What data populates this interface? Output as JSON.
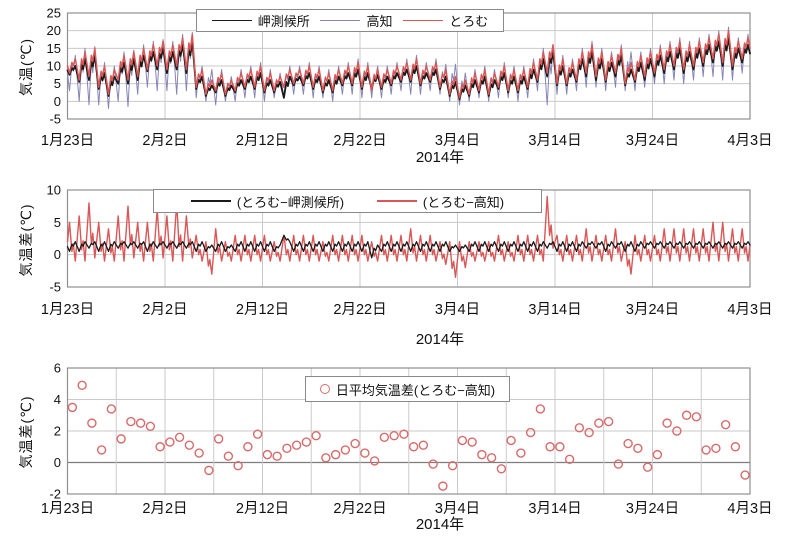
{
  "figure": {
    "year_label": "2014年",
    "x_axis_dates": [
      "1月23日",
      "2月2日",
      "2月12日",
      "2月22日",
      "3月4日",
      "3月14日",
      "3月24日",
      "4月3日"
    ]
  },
  "chart_data": [
    {
      "type": "line",
      "title": "",
      "ylabel": "気温(℃)",
      "xlabel": "2014年",
      "ylim": [
        -5,
        25
      ],
      "yticks": [
        25,
        20,
        15,
        10,
        5,
        0,
        -5
      ],
      "xlim_days": [
        0,
        70
      ],
      "grid_day_step": 10,
      "legend_position": "top-center",
      "xticks": [
        {
          "day": 0,
          "label": "1月23日"
        },
        {
          "day": 10,
          "label": "2月2日"
        },
        {
          "day": 20,
          "label": "2月12日"
        },
        {
          "day": 30,
          "label": "2月22日"
        },
        {
          "day": 40,
          "label": "3月4日"
        },
        {
          "day": 50,
          "label": "3月14日"
        },
        {
          "day": 60,
          "label": "3月24日"
        },
        {
          "day": 70,
          "label": "4月3日"
        }
      ],
      "series": [
        {
          "name": "岬測候所",
          "color": "#1a1a1a",
          "line_width": 1.8,
          "daily_min_max": [
            [
              7.5,
              10
            ],
            [
              5.5,
              12
            ],
            [
              6,
              13
            ],
            [
              3.5,
              8
            ],
            [
              1.5,
              7
            ],
            [
              5,
              11
            ],
            [
              5,
              12
            ],
            [
              6,
              13
            ],
            [
              8.5,
              14
            ],
            [
              9,
              15
            ],
            [
              8,
              14
            ],
            [
              9,
              16
            ],
            [
              8,
              17
            ],
            [
              3.5,
              7
            ],
            [
              1.5,
              4.5
            ],
            [
              2.5,
              6
            ],
            [
              1.5,
              4.5
            ],
            [
              2.5,
              6
            ],
            [
              3.5,
              7
            ],
            [
              3.5,
              8
            ],
            [
              2.5,
              6
            ],
            [
              2.5,
              5.5
            ],
            [
              1,
              7
            ],
            [
              4.5,
              7
            ],
            [
              4.5,
              8
            ],
            [
              3.5,
              7
            ],
            [
              2.5,
              6
            ],
            [
              2.5,
              7
            ],
            [
              4.5,
              8
            ],
            [
              4.5,
              9
            ],
            [
              3.5,
              8
            ],
            [
              3.5,
              7.5
            ],
            [
              3.5,
              7
            ],
            [
              4.5,
              8
            ],
            [
              5.5,
              9
            ],
            [
              5.5,
              10
            ],
            [
              4.5,
              8
            ],
            [
              5.5,
              9
            ],
            [
              3.5,
              7
            ],
            [
              1.5,
              5.5
            ],
            [
              0.5,
              4.5
            ],
            [
              1.5,
              6
            ],
            [
              2.5,
              7
            ],
            [
              1.5,
              6
            ],
            [
              3.5,
              8
            ],
            [
              2.5,
              7
            ],
            [
              2.5,
              7
            ],
            [
              3.5,
              9
            ],
            [
              5.5,
              12
            ],
            [
              7,
              14
            ],
            [
              4.5,
              10
            ],
            [
              4.5,
              9
            ],
            [
              5.5,
              12
            ],
            [
              7,
              14
            ],
            [
              6,
              12
            ],
            [
              5.5,
              11
            ],
            [
              7,
              13
            ],
            [
              4.5,
              9
            ],
            [
              5.5,
              11
            ],
            [
              6,
              12
            ],
            [
              7,
              13
            ],
            [
              8,
              14
            ],
            [
              9,
              15
            ],
            [
              8,
              14
            ],
            [
              9,
              15
            ],
            [
              10,
              16
            ],
            [
              11,
              17
            ],
            [
              10,
              18
            ],
            [
              9,
              15
            ],
            [
              11,
              16
            ]
          ]
        },
        {
          "name": "高知",
          "color": "#8585b8",
          "line_width": 1.0,
          "daily_min_max": [
            [
              3,
              13
            ],
            [
              0,
              15
            ],
            [
              -1,
              15.5
            ],
            [
              -1,
              11
            ],
            [
              -2,
              10
            ],
            [
              0,
              14
            ],
            [
              -1.5,
              14.5
            ],
            [
              2,
              16
            ],
            [
              4,
              17
            ],
            [
              3,
              17.5
            ],
            [
              3,
              17
            ],
            [
              2,
              19
            ],
            [
              3,
              19.5
            ],
            [
              1,
              10
            ],
            [
              0,
              9
            ],
            [
              -1,
              9
            ],
            [
              0,
              7
            ],
            [
              0,
              9
            ],
            [
              1,
              10
            ],
            [
              1,
              11
            ],
            [
              0,
              9
            ],
            [
              1,
              8
            ],
            [
              1,
              10
            ],
            [
              2,
              10
            ],
            [
              2,
              11
            ],
            [
              1,
              10
            ],
            [
              1,
              9
            ],
            [
              0,
              10
            ],
            [
              2,
              11
            ],
            [
              2,
              12
            ],
            [
              1,
              11
            ],
            [
              1,
              10
            ],
            [
              1,
              10
            ],
            [
              2,
              11
            ],
            [
              3,
              12
            ],
            [
              2,
              13
            ],
            [
              2,
              11
            ],
            [
              3,
              12
            ],
            [
              2,
              10.5
            ],
            [
              0,
              10.5
            ],
            [
              -1,
              8
            ],
            [
              0,
              9
            ],
            [
              1,
              10
            ],
            [
              0,
              9
            ],
            [
              1,
              11
            ],
            [
              1,
              10
            ],
            [
              0,
              10
            ],
            [
              1,
              12
            ],
            [
              3,
              15
            ],
            [
              -1,
              15
            ],
            [
              2,
              13
            ],
            [
              2,
              12
            ],
            [
              3,
              15
            ],
            [
              4,
              17
            ],
            [
              4,
              15
            ],
            [
              3,
              14
            ],
            [
              4,
              16
            ],
            [
              3,
              14
            ],
            [
              3,
              14
            ],
            [
              4,
              15
            ],
            [
              5,
              16
            ],
            [
              5,
              17
            ],
            [
              6,
              18
            ],
            [
              5,
              17
            ],
            [
              6,
              18
            ],
            [
              7,
              19
            ],
            [
              7,
              20
            ],
            [
              6,
              21
            ],
            [
              6,
              18
            ],
            [
              8,
              19
            ]
          ]
        },
        {
          "name": "とろむ",
          "color": "#d95757",
          "line_width": 1.5,
          "daily_min_max": [
            [
              8,
              12
            ],
            [
              6,
              14
            ],
            [
              7,
              15
            ],
            [
              4,
              10
            ],
            [
              2,
              9
            ],
            [
              6,
              13
            ],
            [
              6,
              14
            ],
            [
              7,
              15
            ],
            [
              9,
              16
            ],
            [
              10,
              17
            ],
            [
              9,
              16
            ],
            [
              10,
              18
            ],
            [
              9,
              19
            ],
            [
              4,
              9
            ],
            [
              2,
              6
            ],
            [
              3,
              8
            ],
            [
              2,
              6
            ],
            [
              3,
              8
            ],
            [
              4,
              9
            ],
            [
              4,
              10
            ],
            [
              3,
              8
            ],
            [
              3,
              7
            ],
            [
              4,
              9
            ],
            [
              5,
              9
            ],
            [
              5,
              10
            ],
            [
              4,
              9
            ],
            [
              3,
              8
            ],
            [
              3,
              9
            ],
            [
              5,
              10
            ],
            [
              5,
              11
            ],
            [
              4,
              10
            ],
            [
              3,
              9
            ],
            [
              4,
              9
            ],
            [
              5,
              10
            ],
            [
              6,
              11
            ],
            [
              6,
              12
            ],
            [
              5,
              10
            ],
            [
              6,
              11
            ],
            [
              4,
              9
            ],
            [
              2,
              7
            ],
            [
              1,
              6
            ],
            [
              2,
              8
            ],
            [
              3,
              9
            ],
            [
              2,
              8
            ],
            [
              4,
              10
            ],
            [
              3,
              9
            ],
            [
              3,
              9
            ],
            [
              4,
              11
            ],
            [
              6,
              14
            ],
            [
              8,
              16
            ],
            [
              5,
              12
            ],
            [
              5,
              11
            ],
            [
              6,
              14
            ],
            [
              8,
              16
            ],
            [
              7,
              14
            ],
            [
              6,
              13
            ],
            [
              8,
              15
            ],
            [
              5,
              11
            ],
            [
              6,
              13
            ],
            [
              7,
              14
            ],
            [
              8,
              15
            ],
            [
              9,
              16
            ],
            [
              10,
              17
            ],
            [
              9,
              16
            ],
            [
              10,
              17
            ],
            [
              11,
              18
            ],
            [
              12,
              19
            ],
            [
              11,
              20
            ],
            [
              10,
              17
            ],
            [
              12,
              18
            ]
          ]
        }
      ]
    },
    {
      "type": "line",
      "title": "",
      "ylabel": "気温差(℃)",
      "xlabel": "2014年",
      "ylim": [
        -5,
        10
      ],
      "yticks": [
        10,
        5,
        0,
        -5
      ],
      "xlim_days": [
        0,
        70
      ],
      "grid_day_step": 10,
      "legend_position": "top-center",
      "xticks": [
        {
          "day": 0,
          "label": "1月23日"
        },
        {
          "day": 10,
          "label": "2月2日"
        },
        {
          "day": 20,
          "label": "2月12日"
        },
        {
          "day": 30,
          "label": "2月22日"
        },
        {
          "day": 40,
          "label": "3月4日"
        },
        {
          "day": 50,
          "label": "3月14日"
        },
        {
          "day": 60,
          "label": "3月24日"
        },
        {
          "day": 70,
          "label": "4月3日"
        }
      ],
      "series": [
        {
          "name": "(とろむ−岬測候所)",
          "color": "#1a1a1a",
          "line_width": 1.3,
          "derived_difference_of": [
            "とろむ",
            "岬測候所"
          ]
        },
        {
          "name": "(とろむ−高知)",
          "color": "#d95757",
          "line_width": 1.4,
          "derived_difference_of": [
            "とろむ",
            "高知"
          ]
        }
      ]
    },
    {
      "type": "scatter",
      "title": "",
      "ylabel": "気温差(℃)",
      "xlabel": "2014年",
      "ylim": [
        -2,
        6
      ],
      "yticks": [
        6,
        4,
        2,
        0,
        -2
      ],
      "xlim_days": [
        0,
        70
      ],
      "grid_day_step": 5,
      "zero_line_dark": true,
      "legend_position": "top-center",
      "xticks": [
        {
          "day": 0,
          "label": "1月23日"
        },
        {
          "day": 10,
          "label": "2月2日"
        },
        {
          "day": 20,
          "label": "2月12日"
        },
        {
          "day": 30,
          "label": "2月22日"
        },
        {
          "day": 40,
          "label": "3月4日"
        },
        {
          "day": 50,
          "label": "3月14日"
        },
        {
          "day": 60,
          "label": "3月24日"
        },
        {
          "day": 70,
          "label": "4月3日"
        }
      ],
      "series": [
        {
          "name": "日平均気温差(とろむ−高知)",
          "color": "#d96a6a",
          "marker": "open-circle",
          "marker_radius": 4,
          "values": [
            3.5,
            4.9,
            2.5,
            0.8,
            3.4,
            1.5,
            2.6,
            2.5,
            2.3,
            1.0,
            1.3,
            1.6,
            1.1,
            0.6,
            -0.5,
            1.5,
            0.4,
            -0.2,
            1.0,
            1.8,
            0.5,
            0.4,
            0.9,
            1.1,
            1.3,
            1.7,
            0.3,
            0.5,
            0.8,
            1.2,
            0.6,
            0.1,
            1.6,
            1.7,
            1.8,
            1.0,
            1.1,
            -0.1,
            -1.5,
            -0.2,
            1.4,
            1.3,
            0.5,
            0.3,
            -0.4,
            1.4,
            0.6,
            1.9,
            3.4,
            1.0,
            1.0,
            0.2,
            2.2,
            1.9,
            2.5,
            2.6,
            -0.1,
            1.2,
            0.9,
            -0.3,
            0.5,
            2.5,
            2.0,
            3.0,
            2.9,
            0.8,
            0.9,
            2.4,
            1.0,
            -0.8
          ]
        }
      ]
    }
  ]
}
